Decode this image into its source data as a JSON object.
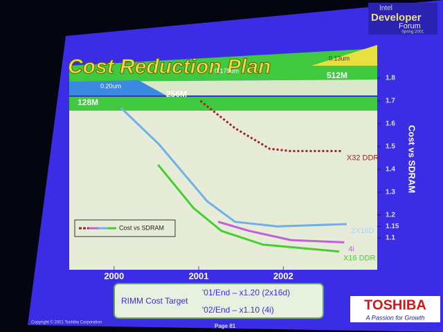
{
  "logo": {
    "line1": "Intel",
    "line2": "Developer",
    "line3": "Forum",
    "line4": "Spring 2001"
  },
  "chart_data": {
    "type": "line",
    "title": "Cost Reduction Plan",
    "process_labels": [
      "0.20um",
      "0.175um",
      "0.13um"
    ],
    "density_labels": [
      "128M",
      "256M",
      "512M"
    ],
    "y_label": "Cost vs SDRAM",
    "legend_label": "Cost vs SDRAM",
    "xlim": [
      1999.47,
      2003.11
    ],
    "xticks": [
      2000,
      2001,
      2002
    ],
    "ylim": [
      0.96,
      1.845
    ],
    "yticks": [
      1.1,
      1.15,
      1.2,
      1.3,
      1.4,
      1.5,
      1.6,
      1.7,
      1.8
    ],
    "series": [
      {
        "name": "X32 DDR",
        "color": "#a02020",
        "dash": true,
        "x": [
          2001.02,
          2001.43,
          2001.84,
          2002.09,
          2002.7
        ],
        "values": [
          1.7,
          1.58,
          1.49,
          1.48,
          1.48
        ]
      },
      {
        "name": "2X16D",
        "color": "#6fb0e8",
        "dash": false,
        "x": [
          2000.08,
          2000.53,
          2001.1,
          2001.43,
          2001.93,
          2002.75
        ],
        "values": [
          1.67,
          1.51,
          1.26,
          1.17,
          1.15,
          1.16
        ]
      },
      {
        "name": "4i",
        "color": "#c060d8",
        "dash": false,
        "x": [
          2001.23,
          2001.6,
          2002.09,
          2002.72
        ],
        "values": [
          1.17,
          1.13,
          1.09,
          1.08
        ]
      },
      {
        "name": "X16 DDR",
        "color": "#40d030",
        "dash": false,
        "x": [
          2000.52,
          2000.94,
          2001.27,
          2001.76,
          2002.66
        ],
        "values": [
          1.42,
          1.23,
          1.13,
          1.07,
          1.04
        ]
      }
    ]
  },
  "target": {
    "label": "RIMM Cost Target",
    "line1": "'01/End – x1.20 (2x16d)",
    "line2": "'02/End – x1.10 (4i)"
  },
  "brand": {
    "name": "TOSHIBA",
    "slogan": "A Passion for Growth"
  },
  "footer": {
    "copyright": "Copyright © 2001 Toshiba Corporation",
    "page": "Page 81"
  }
}
